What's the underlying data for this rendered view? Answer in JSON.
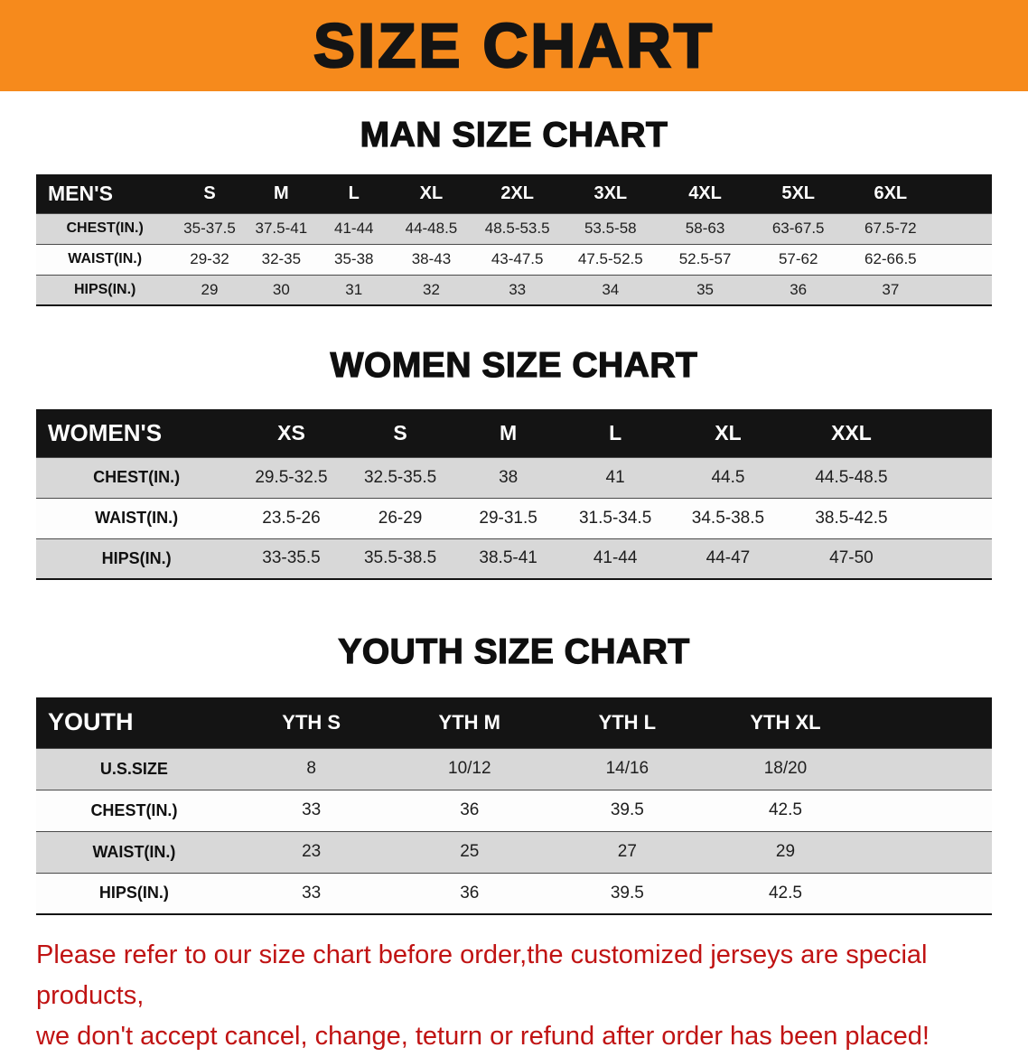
{
  "banner": {
    "title": "SIZE CHART"
  },
  "colors": {
    "banner_bg": "#f68a1c",
    "table_header_bg": "#141414",
    "row_stripe_gray": "#d8d8d8",
    "notice_text": "#c01313"
  },
  "sections": [
    {
      "heading": "MAN SIZE CHART",
      "table": {
        "header": [
          "MEN'S",
          "S",
          "M",
          "L",
          "XL",
          "2XL",
          "3XL",
          "4XL",
          "5XL",
          "6XL"
        ],
        "rows": [
          [
            "CHEST(IN.)",
            "35-37.5",
            "37.5-41",
            "41-44",
            "44-48.5",
            "48.5-53.5",
            "53.5-58",
            "58-63",
            "63-67.5",
            "67.5-72"
          ],
          [
            "WAIST(IN.)",
            "29-32",
            "32-35",
            "35-38",
            "38-43",
            "43-47.5",
            "47.5-52.5",
            "52.5-57",
            "57-62",
            "62-66.5"
          ],
          [
            "HIPS(IN.)",
            "29",
            "30",
            "31",
            "32",
            "33",
            "34",
            "35",
            "36",
            "37"
          ]
        ]
      }
    },
    {
      "heading": "WOMEN SIZE CHART",
      "table": {
        "header": [
          "WOMEN'S",
          "XS",
          "S",
          "M",
          "L",
          "XL",
          "XXL"
        ],
        "rows": [
          [
            "CHEST(IN.)",
            "29.5-32.5",
            "32.5-35.5",
            "38",
            "41",
            "44.5",
            "44.5-48.5"
          ],
          [
            "WAIST(IN.)",
            "23.5-26",
            "26-29",
            "29-31.5",
            "31.5-34.5",
            "34.5-38.5",
            "38.5-42.5"
          ],
          [
            "HIPS(IN.)",
            "33-35.5",
            "35.5-38.5",
            "38.5-41",
            "41-44",
            "44-47",
            "47-50"
          ]
        ]
      }
    },
    {
      "heading": "YOUTH SIZE CHART",
      "table": {
        "header": [
          "YOUTH",
          "YTH S",
          "YTH M",
          "YTH L",
          "YTH XL"
        ],
        "rows": [
          [
            "U.S.SIZE",
            "8",
            "10/12",
            "14/16",
            "18/20"
          ],
          [
            "CHEST(IN.)",
            "33",
            "36",
            "39.5",
            "42.5"
          ],
          [
            "WAIST(IN.)",
            "23",
            "25",
            "27",
            "29"
          ],
          [
            "HIPS(IN.)",
            "33",
            "36",
            "39.5",
            "42.5"
          ]
        ]
      }
    }
  ],
  "footer": {
    "line1": "Please refer to our size chart before order,the customized jerseys are special products,",
    "line2": "we don't accept cancel, change, teturn or refund after order has been placed!"
  }
}
